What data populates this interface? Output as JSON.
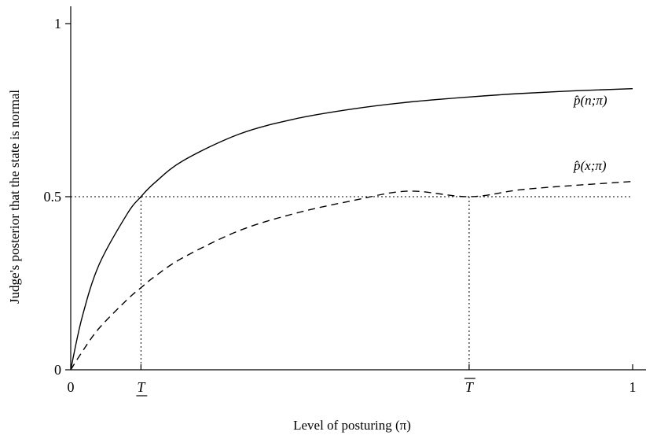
{
  "chart_data": {
    "type": "line",
    "title": "",
    "xlabel": "Level of posturing (π)",
    "ylabel": "Judge's posterior  that the state is normal",
    "xlim": [
      0,
      1
    ],
    "ylim": [
      0,
      1
    ],
    "x_ticks": [
      {
        "value": 0,
        "label": "0"
      },
      {
        "value": 0.125,
        "label": "T",
        "decoration": "underline"
      },
      {
        "value": 0.709,
        "label": "T",
        "decoration": "overline"
      },
      {
        "value": 1,
        "label": "1"
      }
    ],
    "y_ticks": [
      {
        "value": 0,
        "label": "0"
      },
      {
        "value": 0.5,
        "label": "0.5"
      },
      {
        "value": 1,
        "label": "1"
      }
    ],
    "reference_lines": {
      "horizontal": 0.5,
      "vertical": [
        0.125,
        0.709
      ]
    },
    "x": [
      0,
      0.02,
      0.05,
      0.1,
      0.125,
      0.15,
      0.2,
      0.3,
      0.4,
      0.5,
      0.6,
      0.709,
      0.8,
      0.9,
      1.0
    ],
    "series": [
      {
        "label_pre": "p̂(",
        "label_var": "n",
        "label_post": ";π)",
        "style": "solid",
        "values": [
          0,
          0.15,
          0.302,
          0.449,
          0.5,
          0.541,
          0.604,
          0.681,
          0.725,
          0.753,
          0.773,
          0.788,
          0.798,
          0.806,
          0.812
        ]
      },
      {
        "label_pre": "p̂(",
        "label_var": "x",
        "label_post": ";π)",
        "style": "dashed",
        "values": [
          0,
          0.051,
          0.119,
          0.202,
          0.237,
          0.27,
          0.324,
          0.402,
          0.452,
          0.488,
          0.516,
          0.5,
          0.52,
          0.533,
          0.544
        ]
      }
    ]
  }
}
